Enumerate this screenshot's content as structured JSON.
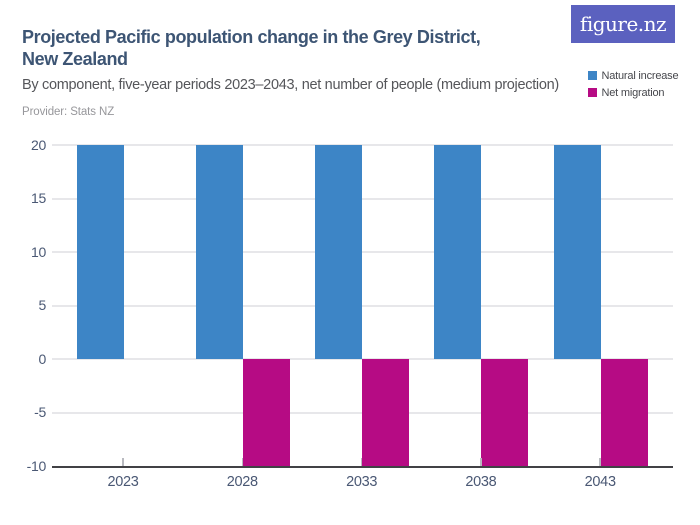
{
  "header": {
    "title_line1": "Projected Pacific population change in the Grey District,",
    "title_line2": "New Zealand",
    "subtitle": "By component, five-year periods 2023–2043, net number of people (medium projection)",
    "provider": "Provider: Stats NZ",
    "logo_text": "figure.nz"
  },
  "colors": {
    "title": "#3d5574",
    "subtitle": "#55565a",
    "provider": "#97979b",
    "axis_label": "#4a5874",
    "legend_text": "#46474c",
    "gridline": "#e7e7ea",
    "axis_line": "#414145",
    "tick_mark": "#b9bac0",
    "logo_background": "#5b61bf",
    "natural_increase": "#3d85c6",
    "net_migration": "#b60b84"
  },
  "chart_data": {
    "type": "bar",
    "title": "Projected Pacific population change in the Grey District, New Zealand",
    "subtitle": "By component, five-year periods 2023–2043, net number of people (medium projection)",
    "categories": [
      "2023",
      "2028",
      "2033",
      "2038",
      "2043"
    ],
    "series": [
      {
        "name": "Natural increase",
        "color": "#3d85c6",
        "values": [
          20,
          20,
          20,
          20,
          20
        ]
      },
      {
        "name": "Net migration",
        "color": "#b60b84",
        "values": [
          0,
          -10,
          -10,
          -10,
          -10
        ]
      }
    ],
    "xlabel": "",
    "ylabel": "",
    "ylim": [
      -10,
      20
    ],
    "yticks": [
      20,
      15,
      10,
      5,
      0,
      -5,
      -10
    ],
    "grid": true,
    "legend_position": "top-right"
  }
}
